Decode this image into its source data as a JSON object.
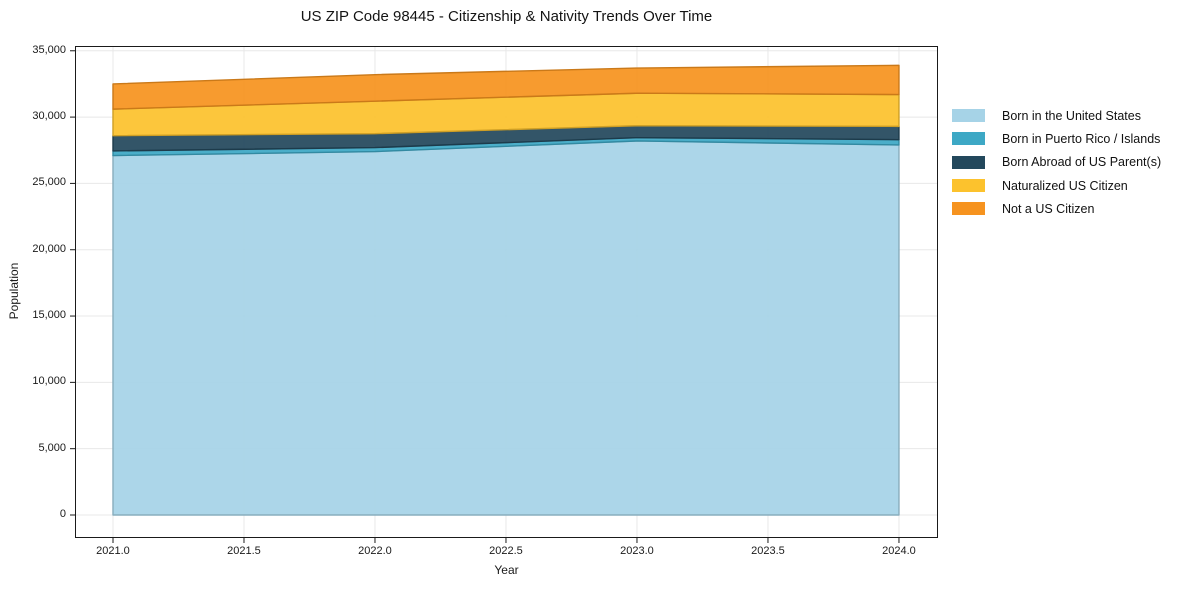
{
  "chart_data": {
    "type": "area",
    "stacked": true,
    "title": "US ZIP Code 98445 - Citizenship & Nativity Trends Over Time",
    "xlabel": "Year",
    "ylabel": "Population",
    "x": [
      2021,
      2022,
      2023,
      2024
    ],
    "series": [
      {
        "name": "Born in the United States",
        "color": "#a6d3e7",
        "values": [
          27100,
          27400,
          28200,
          27900
        ]
      },
      {
        "name": "Born in Puerto Rico / Islands",
        "color": "#3da8c5",
        "values": [
          350,
          300,
          250,
          400
        ]
      },
      {
        "name": "Born Abroad of US Parent(s)",
        "color": "#23485c",
        "values": [
          1150,
          1050,
          900,
          1000
        ]
      },
      {
        "name": "Naturalized US Citizen",
        "color": "#fcc22d",
        "values": [
          2000,
          2450,
          2450,
          2400
        ]
      },
      {
        "name": "Not a US Citizen",
        "color": "#f6931f",
        "values": [
          1900,
          2000,
          1900,
          2200
        ]
      }
    ],
    "stack_totals": [
      32500,
      33200,
      33700,
      33900
    ],
    "xlim": [
      2020.855,
      2024.149
    ],
    "ylim": [
      -1734,
      35360
    ],
    "xticks": [
      2021.0,
      2021.5,
      2022.0,
      2022.5,
      2023.0,
      2023.5,
      2024.0
    ],
    "xtick_labels": [
      "2021.0",
      "2021.5",
      "2022.0",
      "2022.5",
      "2023.0",
      "2023.5",
      "2024.0"
    ],
    "yticks": [
      0,
      5000,
      10000,
      15000,
      20000,
      25000,
      30000,
      35000
    ],
    "ytick_labels": [
      "0",
      "5,000",
      "10,000",
      "15,000",
      "20,000",
      "25,000",
      "30,000",
      "35,000"
    ],
    "grid": true,
    "grid_color": "#e8e8e8",
    "spine_color": "#1a1a1a",
    "text_color": "#141414",
    "background": "#ffffff",
    "legend_position": "right-outside"
  }
}
